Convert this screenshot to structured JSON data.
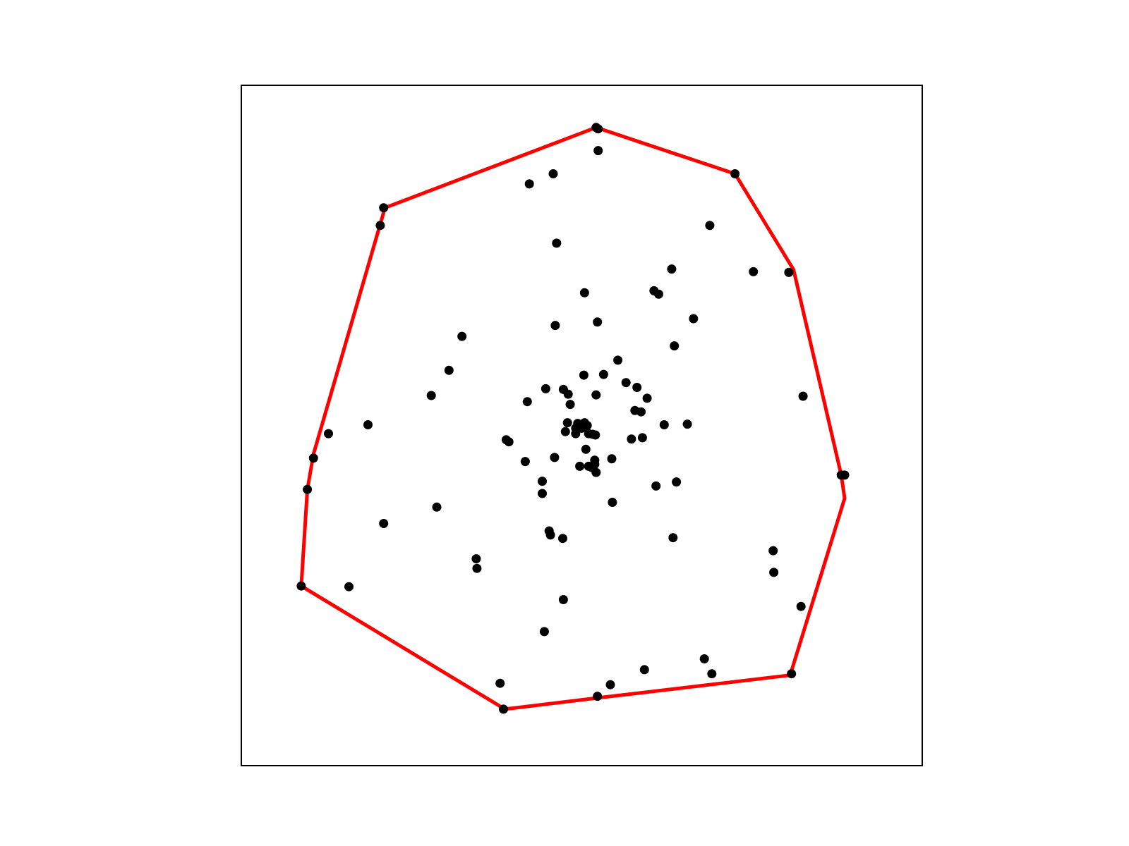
{
  "chart_data": {
    "type": "scatter",
    "title": "",
    "xlabel": "",
    "ylabel": "",
    "ticks_visible": false,
    "grid": false,
    "xlim": [
      0,
      100
    ],
    "ylim": [
      0,
      100
    ],
    "colors": {
      "points": "#000000",
      "hull": "#ff0000",
      "frame": "#000000",
      "background": "#ffffff"
    },
    "points": [
      [
        52.1,
        93.8
      ],
      [
        52.4,
        90.4
      ],
      [
        45.8,
        87.0
      ],
      [
        42.3,
        85.5
      ],
      [
        72.5,
        87.0
      ],
      [
        20.9,
        82.0
      ],
      [
        20.4,
        79.4
      ],
      [
        68.8,
        79.4
      ],
      [
        46.3,
        76.8
      ],
      [
        75.2,
        72.6
      ],
      [
        63.2,
        73.0
      ],
      [
        60.6,
        69.8
      ],
      [
        61.3,
        69.3
      ],
      [
        50.4,
        69.5
      ],
      [
        52.3,
        65.2
      ],
      [
        66.4,
        65.7
      ],
      [
        46.1,
        64.7
      ],
      [
        32.4,
        63.1
      ],
      [
        63.6,
        61.7
      ],
      [
        30.5,
        58.1
      ],
      [
        55.3,
        59.6
      ],
      [
        50.3,
        57.4
      ],
      [
        53.2,
        57.5
      ],
      [
        56.5,
        56.3
      ],
      [
        58.1,
        55.6
      ],
      [
        27.9,
        54.4
      ],
      [
        44.7,
        55.4
      ],
      [
        47.3,
        55.3
      ],
      [
        48.0,
        54.6
      ],
      [
        52.1,
        54.5
      ],
      [
        59.6,
        54.0
      ],
      [
        42.0,
        53.5
      ],
      [
        48.3,
        53.1
      ],
      [
        57.8,
        52.2
      ],
      [
        58.7,
        52.0
      ],
      [
        82.5,
        54.3
      ],
      [
        62.1,
        50.1
      ],
      [
        65.5,
        50.2
      ],
      [
        47.9,
        50.4
      ],
      [
        50.4,
        50.4
      ],
      [
        49.4,
        50.3
      ],
      [
        50.8,
        50.0
      ],
      [
        49.1,
        49.6
      ],
      [
        50.0,
        49.6
      ],
      [
        47.6,
        49.1
      ],
      [
        49.1,
        48.8
      ],
      [
        51.0,
        48.8
      ],
      [
        51.6,
        48.7
      ],
      [
        12.8,
        48.8
      ],
      [
        18.6,
        50.1
      ],
      [
        38.9,
        47.9
      ],
      [
        39.3,
        47.6
      ],
      [
        52.0,
        48.6
      ],
      [
        57.3,
        48.0
      ],
      [
        58.9,
        48.2
      ],
      [
        50.6,
        46.5
      ],
      [
        46.0,
        45.3
      ],
      [
        10.6,
        45.2
      ],
      [
        41.7,
        44.7
      ],
      [
        51.9,
        44.9
      ],
      [
        54.4,
        45.1
      ],
      [
        49.7,
        44.0
      ],
      [
        51.0,
        44.0
      ],
      [
        51.9,
        44.3
      ],
      [
        52.1,
        43.1
      ],
      [
        51.5,
        43.8
      ],
      [
        88.6,
        42.7
      ],
      [
        44.2,
        41.8
      ],
      [
        9.7,
        40.6
      ],
      [
        60.9,
        41.1
      ],
      [
        63.9,
        41.7
      ],
      [
        44.2,
        40.0
      ],
      [
        54.5,
        38.7
      ],
      [
        28.7,
        38.0
      ],
      [
        20.9,
        35.6
      ],
      [
        45.2,
        34.5
      ],
      [
        45.4,
        33.9
      ],
      [
        47.2,
        33.4
      ],
      [
        63.4,
        33.5
      ],
      [
        34.5,
        30.4
      ],
      [
        34.6,
        29.0
      ],
      [
        78.1,
        31.6
      ],
      [
        78.2,
        28.4
      ],
      [
        8.8,
        26.4
      ],
      [
        15.8,
        26.3
      ],
      [
        47.3,
        24.4
      ],
      [
        82.2,
        23.4
      ],
      [
        44.5,
        19.7
      ],
      [
        68.0,
        15.7
      ],
      [
        69.1,
        13.5
      ],
      [
        59.2,
        14.1
      ],
      [
        80.8,
        13.5
      ],
      [
        38.0,
        12.1
      ],
      [
        54.2,
        11.9
      ],
      [
        52.3,
        10.2
      ],
      [
        38.5,
        8.3
      ],
      [
        88.1,
        42.7
      ],
      [
        80.4,
        72.5
      ],
      [
        52.4,
        93.6
      ]
    ],
    "hull": [
      [
        52.1,
        93.8
      ],
      [
        72.5,
        87.0
      ],
      [
        81.1,
        72.9
      ],
      [
        88.1,
        42.7
      ],
      [
        88.6,
        39.3
      ],
      [
        80.6,
        13.3
      ],
      [
        52.7,
        10.0
      ],
      [
        38.7,
        8.3
      ],
      [
        8.8,
        26.4
      ],
      [
        9.7,
        40.6
      ],
      [
        10.6,
        45.8
      ],
      [
        21.1,
        82.0
      ],
      [
        52.1,
        93.8
      ]
    ]
  }
}
